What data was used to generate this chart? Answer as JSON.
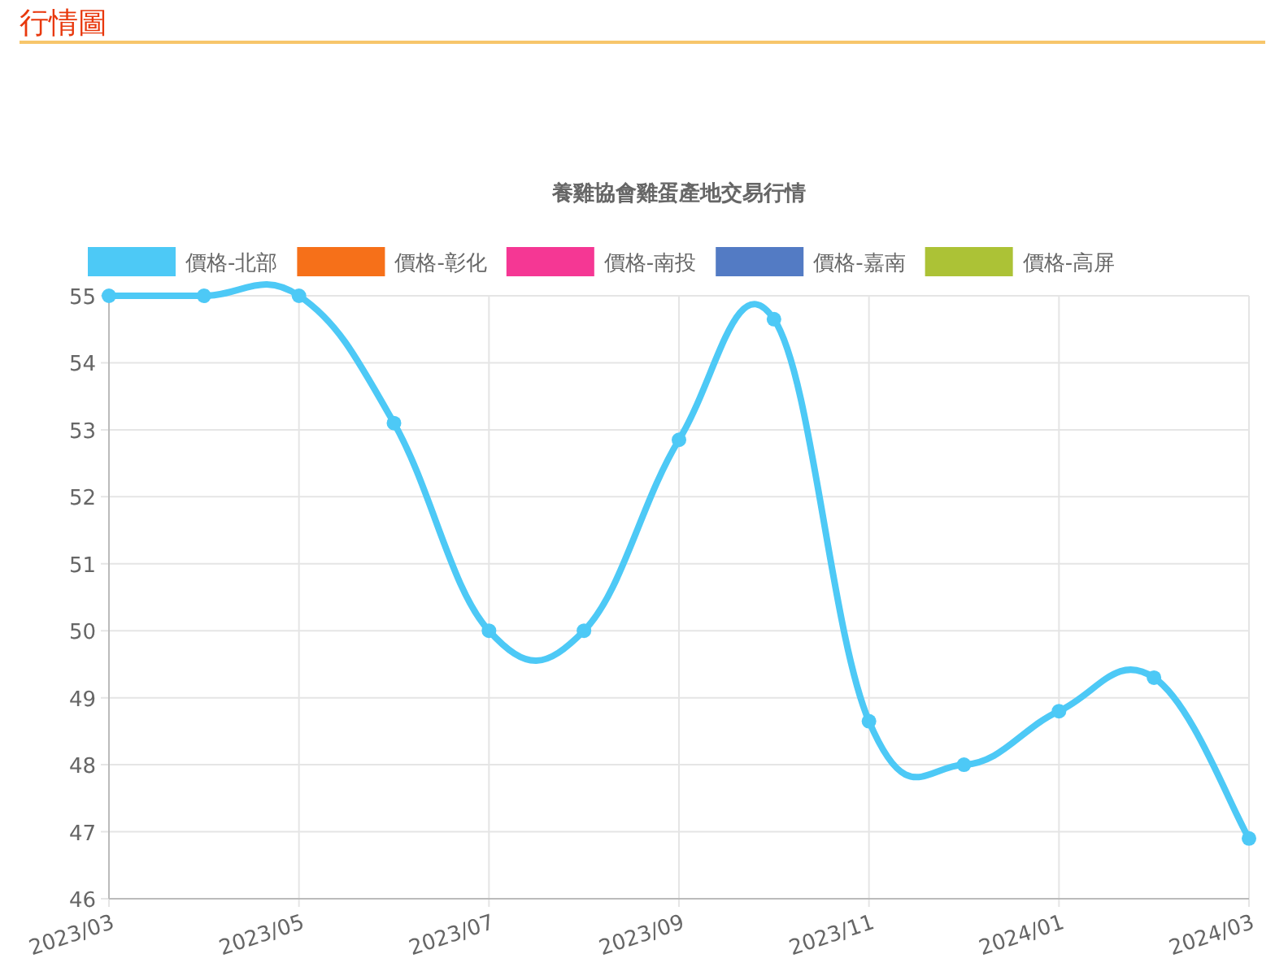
{
  "chart_data": {
    "type": "line",
    "title": "行情圖",
    "subtitle": "養雞協會雞蛋產地交易行情",
    "categories": [
      "2023/03",
      null,
      "2023/05",
      null,
      "2023/07",
      null,
      "2023/09",
      null,
      "2023/11",
      null,
      "2024/01",
      null,
      "2024/03"
    ],
    "series": [
      {
        "name": "價格-北部",
        "color": "#4dc9f6",
        "values": [
          55,
          55,
          55,
          53.1,
          50,
          50,
          52.85,
          54.65,
          48.65,
          48,
          48.8,
          49.3,
          46.9
        ]
      },
      {
        "name": "價格-彰化",
        "color": "#f67019",
        "values": [
          null,
          null,
          null,
          null,
          null,
          null,
          null,
          null,
          null,
          null,
          null,
          null,
          null
        ]
      },
      {
        "name": "價格-南投",
        "color": "#f53794",
        "values": [
          null,
          null,
          null,
          null,
          null,
          null,
          null,
          null,
          null,
          null,
          null,
          null,
          null
        ]
      },
      {
        "name": "價格-嘉南",
        "color": "#537bc4",
        "values": [
          null,
          null,
          null,
          null,
          null,
          null,
          null,
          null,
          null,
          null,
          null,
          null,
          null
        ]
      },
      {
        "name": "價格-高屏",
        "color": "#acc236",
        "values": [
          null,
          null,
          null,
          null,
          null,
          null,
          null,
          null,
          null,
          null,
          null,
          null,
          null
        ]
      }
    ],
    "ylim": [
      46,
      55
    ],
    "yticks": [
      46,
      47,
      48,
      49,
      50,
      51,
      52,
      53,
      54,
      55
    ],
    "grid": true,
    "legend": "top",
    "marker": "circle"
  }
}
